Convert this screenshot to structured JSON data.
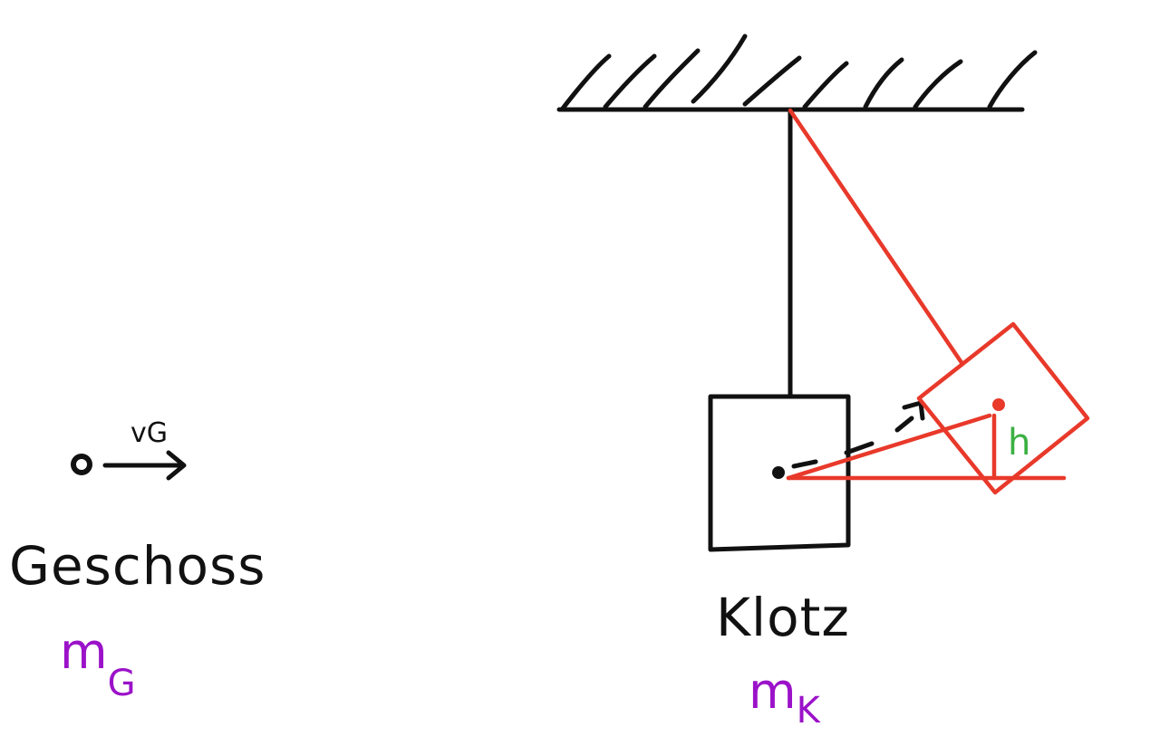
{
  "diagram": {
    "projectile": {
      "label": "Geschoss",
      "mass_symbol": "m",
      "mass_subscript": "G",
      "velocity_label": "vG"
    },
    "block": {
      "label": "Klotz",
      "mass_symbol": "m",
      "mass_subscript": "K"
    },
    "height_label": "h",
    "colors": {
      "ink": "#111111",
      "swing_position": "#e8392a",
      "mass_labels": "#9b12c9",
      "height_label": "#3cb043"
    }
  }
}
